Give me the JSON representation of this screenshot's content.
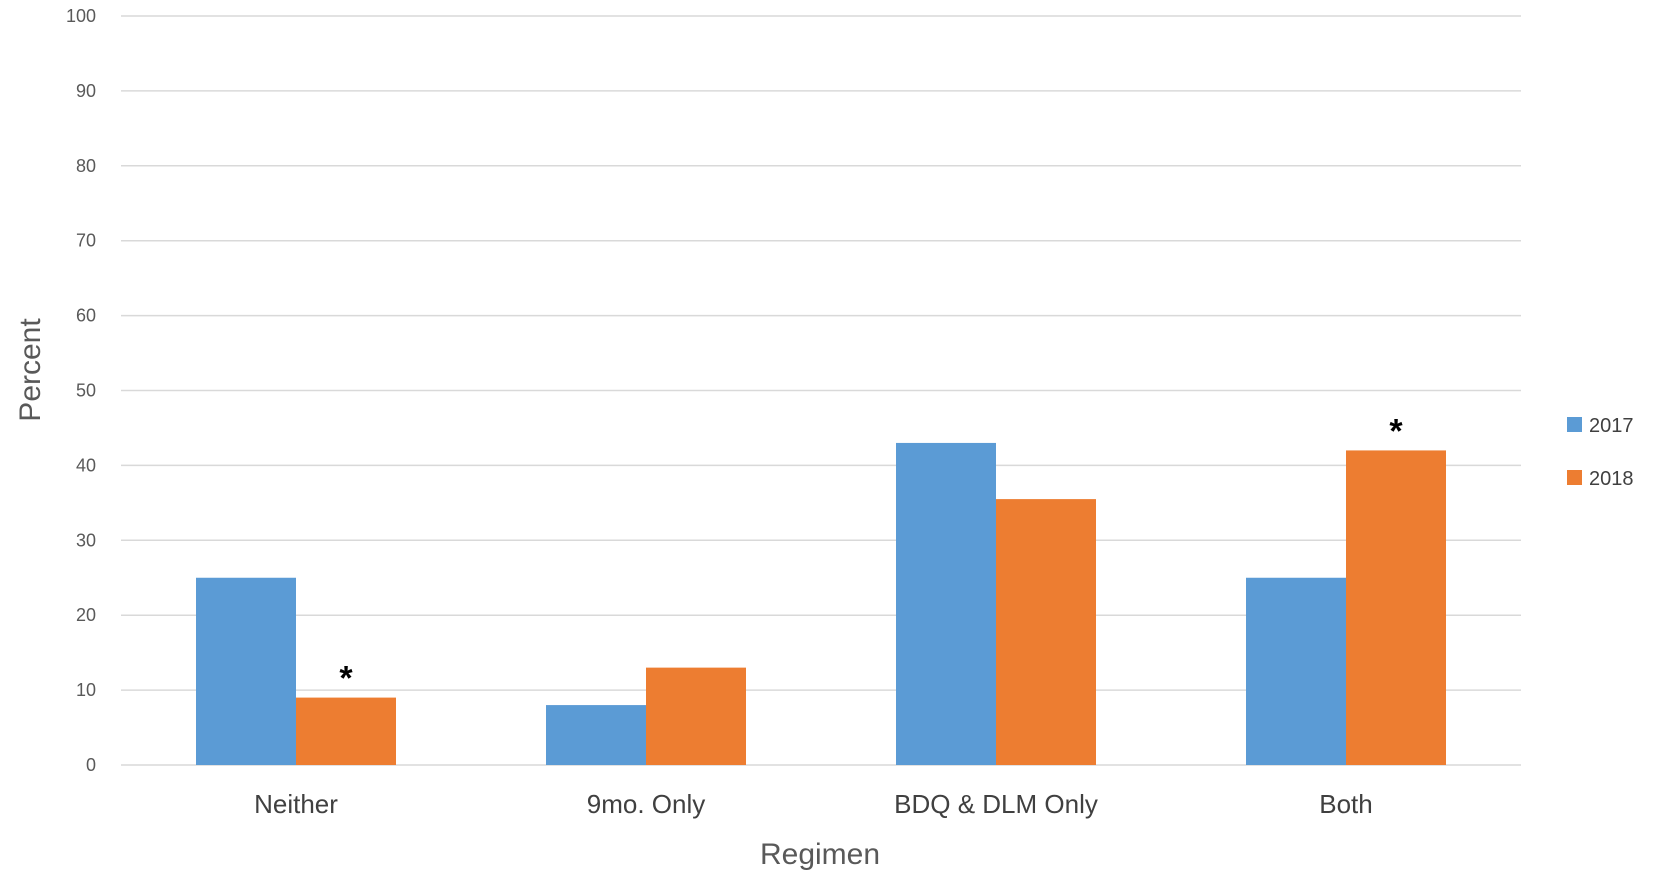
{
  "chart_data": {
    "type": "bar",
    "title": "",
    "xlabel": "Regimen",
    "ylabel": "Percent",
    "ylim": [
      0,
      100
    ],
    "yticks": [
      0,
      10,
      20,
      30,
      40,
      50,
      60,
      70,
      80,
      90,
      100
    ],
    "categories": [
      "Neither",
      "9mo. Only",
      "BDQ & DLM Only",
      "Both"
    ],
    "series": [
      {
        "name": "2017",
        "color": "#5b9bd5",
        "values": [
          25,
          8,
          43,
          25
        ]
      },
      {
        "name": "2018",
        "color": "#ed7d31",
        "values": [
          9,
          13,
          35.5,
          42
        ]
      }
    ],
    "annotations": [
      {
        "text": "*",
        "series": 1,
        "category": 0
      },
      {
        "text": "*",
        "series": 1,
        "category": 3
      }
    ],
    "grid": true,
    "legend_position": "right"
  }
}
